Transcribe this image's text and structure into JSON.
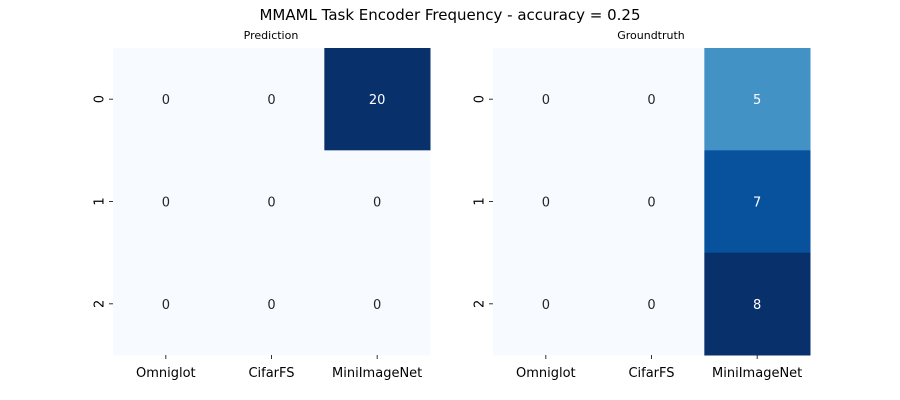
{
  "figure": {
    "title": "MMAML Task Encoder Frequency - accuracy = 0.25"
  },
  "chart_data": [
    {
      "type": "heatmap",
      "title": "Prediction",
      "x_categories": [
        "Omniglot",
        "CifarFS",
        "MiniImageNet"
      ],
      "y_categories": [
        "0",
        "1",
        "2"
      ],
      "values": [
        [
          0,
          0,
          20
        ],
        [
          0,
          0,
          0
        ],
        [
          0,
          0,
          0
        ]
      ],
      "colormap": "Blues",
      "vmin": 0,
      "vmax": 20,
      "low_color": "#f7fbff",
      "high_color": "#08306b",
      "colorbar": false
    },
    {
      "type": "heatmap",
      "title": "Groundtruth",
      "x_categories": [
        "Omniglot",
        "CifarFS",
        "MiniImageNet"
      ],
      "y_categories": [
        "0",
        "1",
        "2"
      ],
      "values": [
        [
          0,
          0,
          5
        ],
        [
          0,
          0,
          7
        ],
        [
          0,
          0,
          8
        ]
      ],
      "colormap": "Blues",
      "vmin": 0,
      "vmax": 8,
      "low_color": "#f7fbff",
      "high_color": "#08306b",
      "colorbar": false
    }
  ]
}
